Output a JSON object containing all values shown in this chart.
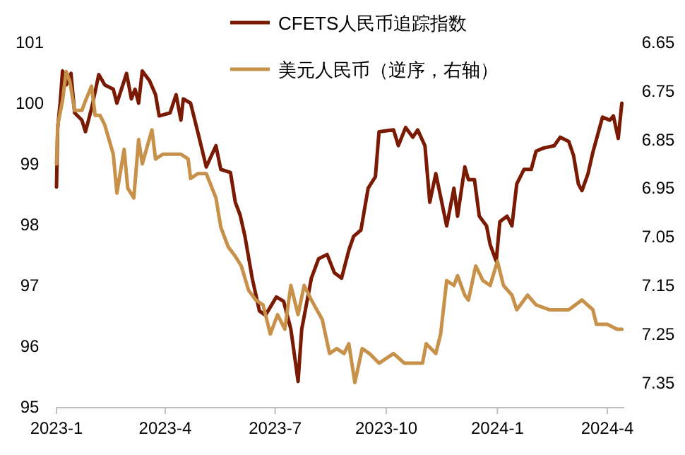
{
  "chart_data": {
    "type": "line",
    "legend": "top",
    "grid": false,
    "xlim": [
      "2023-01-01",
      "2024-04-15"
    ],
    "xticks": [
      {
        "value": "2023-01-01",
        "label": "2023-1"
      },
      {
        "value": "2023-04-01",
        "label": "2023-4"
      },
      {
        "value": "2023-07-01",
        "label": "2023-7"
      },
      {
        "value": "2023-10-01",
        "label": "2023-10"
      },
      {
        "value": "2024-01-01",
        "label": "2024-1"
      },
      {
        "value": "2024-04-01",
        "label": "2024-4"
      }
    ],
    "ylim": [
      95,
      101
    ],
    "yticks": [
      95,
      96,
      97,
      98,
      99,
      100,
      101
    ],
    "y2lim": [
      7.4,
      6.65
    ],
    "y2ticks": [
      6.65,
      6.75,
      6.85,
      6.95,
      7.05,
      7.15,
      7.25,
      7.35
    ],
    "series": [
      {
        "name": "CFETS人民币追踪指数",
        "color": "#7b1a02",
        "x": [
          "2023-01-01",
          "2023-01-02",
          "2023-01-04",
          "2023-01-06",
          "2023-01-09",
          "2023-01-13",
          "2023-01-16",
          "2023-01-22",
          "2023-01-25",
          "2023-01-30",
          "2023-02-05",
          "2023-02-10",
          "2023-02-17",
          "2023-02-20",
          "2023-02-28",
          "2023-03-04",
          "2023-03-07",
          "2023-03-10",
          "2023-03-13",
          "2023-03-19",
          "2023-03-24",
          "2023-03-27",
          "2023-04-05",
          "2023-04-10",
          "2023-04-14",
          "2023-04-16",
          "2023-04-22",
          "2023-04-29",
          "2023-05-05",
          "2023-05-13",
          "2023-05-17",
          "2023-05-25",
          "2023-05-29",
          "2023-06-02",
          "2023-06-06",
          "2023-06-12",
          "2023-06-18",
          "2023-06-23",
          "2023-07-02",
          "2023-07-08",
          "2023-07-14",
          "2023-07-20",
          "2023-07-23",
          "2023-07-31",
          "2023-08-06",
          "2023-08-13",
          "2023-08-19",
          "2023-08-25",
          "2023-08-31",
          "2023-09-04",
          "2023-09-10",
          "2023-09-16",
          "2023-09-22",
          "2023-09-25",
          "2023-10-07",
          "2023-10-11",
          "2023-10-17",
          "2023-10-23",
          "2023-10-27",
          "2023-11-02",
          "2023-11-06",
          "2023-11-11",
          "2023-11-20",
          "2023-11-26",
          "2023-11-29",
          "2023-12-05",
          "2023-12-08",
          "2023-12-13",
          "2023-12-17",
          "2023-12-23",
          "2023-12-26",
          "2023-12-31",
          "2024-01-03",
          "2024-01-09",
          "2024-01-13",
          "2024-01-17",
          "2024-01-23",
          "2024-01-29",
          "2024-02-02",
          "2024-02-08",
          "2024-02-17",
          "2024-02-22",
          "2024-02-29",
          "2024-03-04",
          "2024-03-08",
          "2024-03-11",
          "2024-03-16",
          "2024-03-20",
          "2024-03-28",
          "2024-04-03",
          "2024-04-06",
          "2024-04-10",
          "2024-04-13"
        ],
        "values": [
          98.62,
          99.6,
          100.0,
          100.53,
          100.3,
          100.49,
          99.84,
          99.72,
          99.53,
          99.91,
          100.47,
          100.3,
          100.23,
          100.0,
          100.49,
          100.07,
          100.23,
          100.0,
          100.53,
          100.37,
          100.14,
          99.79,
          99.84,
          100.14,
          99.72,
          100.07,
          100.0,
          99.44,
          98.95,
          99.3,
          98.91,
          98.86,
          98.37,
          98.16,
          97.81,
          97.12,
          96.58,
          96.51,
          96.81,
          96.74,
          96.28,
          95.42,
          96.28,
          97.12,
          97.44,
          97.51,
          97.21,
          97.12,
          97.58,
          97.81,
          97.91,
          98.6,
          98.79,
          99.53,
          99.56,
          99.3,
          99.6,
          99.44,
          99.56,
          99.3,
          98.37,
          98.84,
          97.98,
          98.6,
          98.14,
          98.95,
          98.74,
          98.74,
          98.14,
          97.98,
          97.67,
          97.4,
          98.05,
          98.14,
          97.98,
          98.67,
          98.91,
          98.91,
          99.21,
          99.26,
          99.3,
          99.44,
          99.37,
          99.14,
          98.67,
          98.56,
          98.84,
          99.19,
          99.77,
          99.72,
          99.79,
          99.42,
          100.0
        ]
      },
      {
        "name": "美元人民币（逆序，右轴）",
        "color": "#c8914a",
        "axis": "y2",
        "x": [
          "2023-01-01",
          "2023-01-02",
          "2023-01-06",
          "2023-01-09",
          "2023-01-12",
          "2023-01-16",
          "2023-01-22",
          "2023-01-25",
          "2023-01-30",
          "2023-02-02",
          "2023-02-06",
          "2023-02-10",
          "2023-02-17",
          "2023-02-20",
          "2023-02-26",
          "2023-03-01",
          "2023-03-06",
          "2023-03-10",
          "2023-03-13",
          "2023-03-21",
          "2023-03-24",
          "2023-03-30",
          "2023-04-06",
          "2023-04-14",
          "2023-04-20",
          "2023-04-22",
          "2023-04-28",
          "2023-05-05",
          "2023-05-13",
          "2023-05-17",
          "2023-05-23",
          "2023-05-29",
          "2023-06-03",
          "2023-06-09",
          "2023-06-15",
          "2023-06-21",
          "2023-06-27",
          "2023-07-03",
          "2023-07-09",
          "2023-07-14",
          "2023-07-20",
          "2023-07-25",
          "2023-07-31",
          "2023-08-09",
          "2023-08-15",
          "2023-08-21",
          "2023-08-27",
          "2023-08-31",
          "2023-09-05",
          "2023-09-11",
          "2023-09-17",
          "2023-09-25",
          "2023-10-07",
          "2023-10-16",
          "2023-10-31",
          "2023-11-03",
          "2023-11-11",
          "2023-11-15",
          "2023-11-20",
          "2023-11-26",
          "2023-11-29",
          "2023-12-05",
          "2023-12-08",
          "2023-12-14",
          "2023-12-20",
          "2023-12-26",
          "2024-01-01",
          "2024-01-06",
          "2024-01-13",
          "2024-01-17",
          "2024-01-26",
          "2024-02-02",
          "2024-02-13",
          "2024-02-29",
          "2024-03-11",
          "2024-03-20",
          "2024-03-23",
          "2024-04-01",
          "2024-04-09",
          "2024-04-13"
        ],
        "values": [
          6.9,
          6.82,
          6.77,
          6.71,
          6.73,
          6.79,
          6.79,
          6.77,
          6.74,
          6.8,
          6.8,
          6.82,
          6.88,
          6.96,
          6.87,
          6.95,
          6.97,
          6.85,
          6.9,
          6.83,
          6.89,
          6.88,
          6.88,
          6.88,
          6.89,
          6.93,
          6.92,
          6.92,
          6.97,
          7.03,
          7.07,
          7.09,
          7.11,
          7.16,
          7.18,
          7.19,
          7.25,
          7.21,
          7.24,
          7.15,
          7.21,
          7.15,
          7.18,
          7.22,
          7.29,
          7.28,
          7.29,
          7.27,
          7.35,
          7.28,
          7.29,
          7.31,
          7.29,
          7.31,
          7.31,
          7.27,
          7.29,
          7.25,
          7.14,
          7.15,
          7.13,
          7.17,
          7.18,
          7.11,
          7.14,
          7.15,
          7.1,
          7.15,
          7.17,
          7.2,
          7.17,
          7.19,
          7.2,
          7.2,
          7.18,
          7.2,
          7.23,
          7.23,
          7.24,
          7.24
        ]
      }
    ]
  }
}
